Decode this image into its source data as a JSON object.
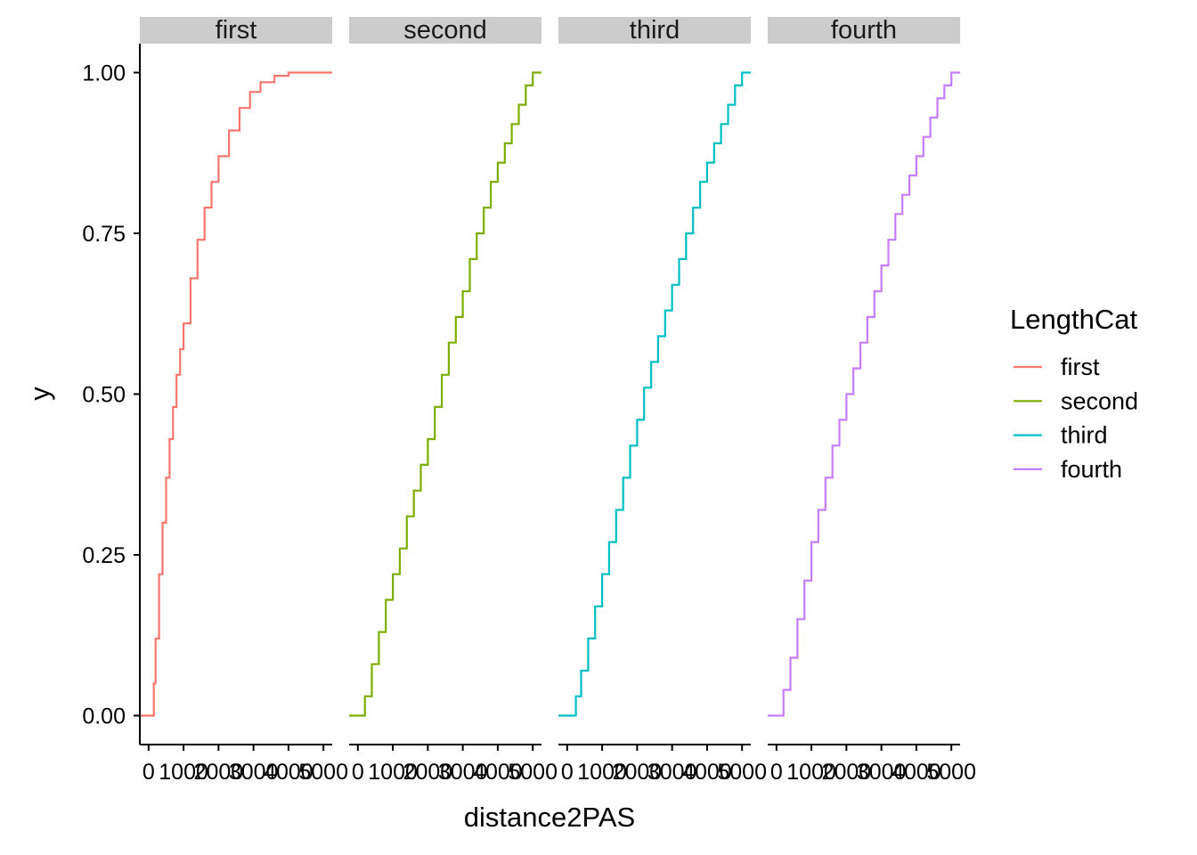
{
  "chart_data": {
    "type": "line",
    "subtype": "empirical-cdf-step",
    "facet_by": "LengthCat",
    "xlabel": "distance2PAS",
    "ylabel": "y",
    "xlim": [
      -250,
      5250
    ],
    "ylim": [
      -0.045,
      1.045
    ],
    "x_ticks": [
      0,
      1000,
      2000,
      3000,
      4000,
      5000
    ],
    "x_tick_labels": [
      "0",
      "1000",
      "2000",
      "3000",
      "4000",
      "5000"
    ],
    "y_ticks": [
      0,
      0.25,
      0.5,
      0.75,
      1.0
    ],
    "y_tick_labels": [
      "0.00",
      "0.25",
      "0.50",
      "0.75",
      "1.00"
    ],
    "grid": false,
    "legend": {
      "title": "LengthCat",
      "position": "right",
      "items": [
        "first",
        "second",
        "third",
        "fourth"
      ]
    },
    "series": [
      {
        "name": "first",
        "color": "#F8766D",
        "x": [
          -250,
          100,
          150,
          200,
          300,
          400,
          500,
          600,
          700,
          800,
          900,
          1000,
          1200,
          1400,
          1600,
          1800,
          2000,
          2300,
          2600,
          2900,
          3200,
          3600,
          4000,
          4400,
          5250
        ],
        "y": [
          0,
          0,
          0.05,
          0.12,
          0.22,
          0.3,
          0.37,
          0.43,
          0.48,
          0.53,
          0.57,
          0.61,
          0.68,
          0.74,
          0.79,
          0.83,
          0.87,
          0.91,
          0.945,
          0.97,
          0.985,
          0.995,
          1.0,
          1.0,
          1.0
        ]
      },
      {
        "name": "second",
        "color": "#7CAE00",
        "x": [
          -250,
          100,
          200,
          400,
          600,
          800,
          1000,
          1200,
          1400,
          1600,
          1800,
          2000,
          2200,
          2400,
          2600,
          2800,
          3000,
          3200,
          3400,
          3600,
          3800,
          4000,
          4200,
          4400,
          4600,
          4800,
          5000,
          5250
        ],
        "y": [
          0,
          0,
          0.03,
          0.08,
          0.13,
          0.18,
          0.22,
          0.26,
          0.31,
          0.35,
          0.39,
          0.43,
          0.48,
          0.53,
          0.58,
          0.62,
          0.66,
          0.71,
          0.75,
          0.79,
          0.83,
          0.86,
          0.89,
          0.92,
          0.95,
          0.98,
          1.0,
          1.0
        ]
      },
      {
        "name": "third",
        "color": "#00BFC4",
        "x": [
          -250,
          150,
          250,
          400,
          600,
          800,
          1000,
          1200,
          1400,
          1600,
          1800,
          2000,
          2200,
          2400,
          2600,
          2800,
          3000,
          3200,
          3400,
          3600,
          3800,
          4000,
          4200,
          4400,
          4600,
          4800,
          5000,
          5250
        ],
        "y": [
          0,
          0,
          0.03,
          0.07,
          0.12,
          0.17,
          0.22,
          0.27,
          0.32,
          0.37,
          0.42,
          0.46,
          0.51,
          0.55,
          0.59,
          0.63,
          0.67,
          0.71,
          0.75,
          0.79,
          0.83,
          0.86,
          0.89,
          0.92,
          0.95,
          0.98,
          1.0,
          1.0
        ]
      },
      {
        "name": "fourth",
        "color": "#C77CFF",
        "x": [
          -250,
          100,
          200,
          400,
          600,
          800,
          1000,
          1200,
          1400,
          1600,
          1800,
          2000,
          2200,
          2400,
          2600,
          2800,
          3000,
          3200,
          3400,
          3600,
          3800,
          4000,
          4200,
          4400,
          4600,
          4800,
          5000,
          5250
        ],
        "y": [
          0,
          0,
          0.04,
          0.09,
          0.15,
          0.21,
          0.27,
          0.32,
          0.37,
          0.42,
          0.46,
          0.5,
          0.54,
          0.58,
          0.62,
          0.66,
          0.7,
          0.74,
          0.78,
          0.81,
          0.84,
          0.87,
          0.9,
          0.93,
          0.96,
          0.98,
          1.0,
          1.0
        ]
      }
    ]
  }
}
